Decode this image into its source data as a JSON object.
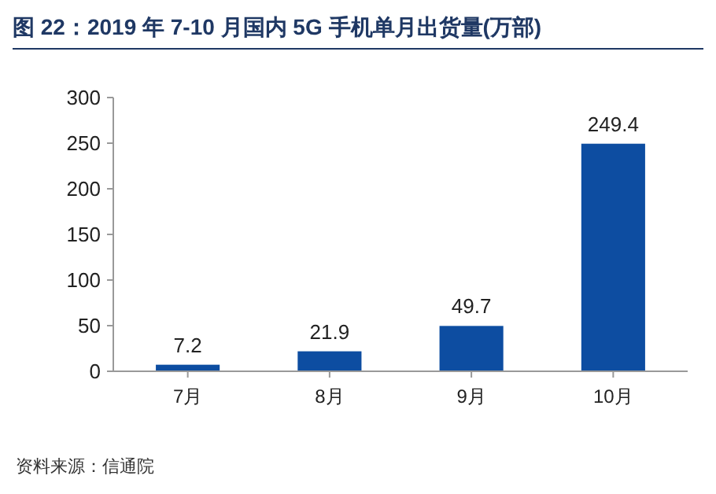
{
  "chart_data": {
    "type": "bar",
    "title": "图 22：2019 年 7-10 月国内 5G 手机单月出货量(万部)",
    "categories": [
      "7月",
      "8月",
      "9月",
      "10月"
    ],
    "values": [
      7.2,
      21.9,
      49.7,
      249.4
    ],
    "color": "#0d4da1",
    "ylim": [
      0,
      300
    ],
    "yticks": [
      0,
      50,
      100,
      150,
      200,
      250,
      300
    ],
    "data_labels": true,
    "grid": false,
    "annotations": [
      "资料来源：信通院"
    ]
  }
}
